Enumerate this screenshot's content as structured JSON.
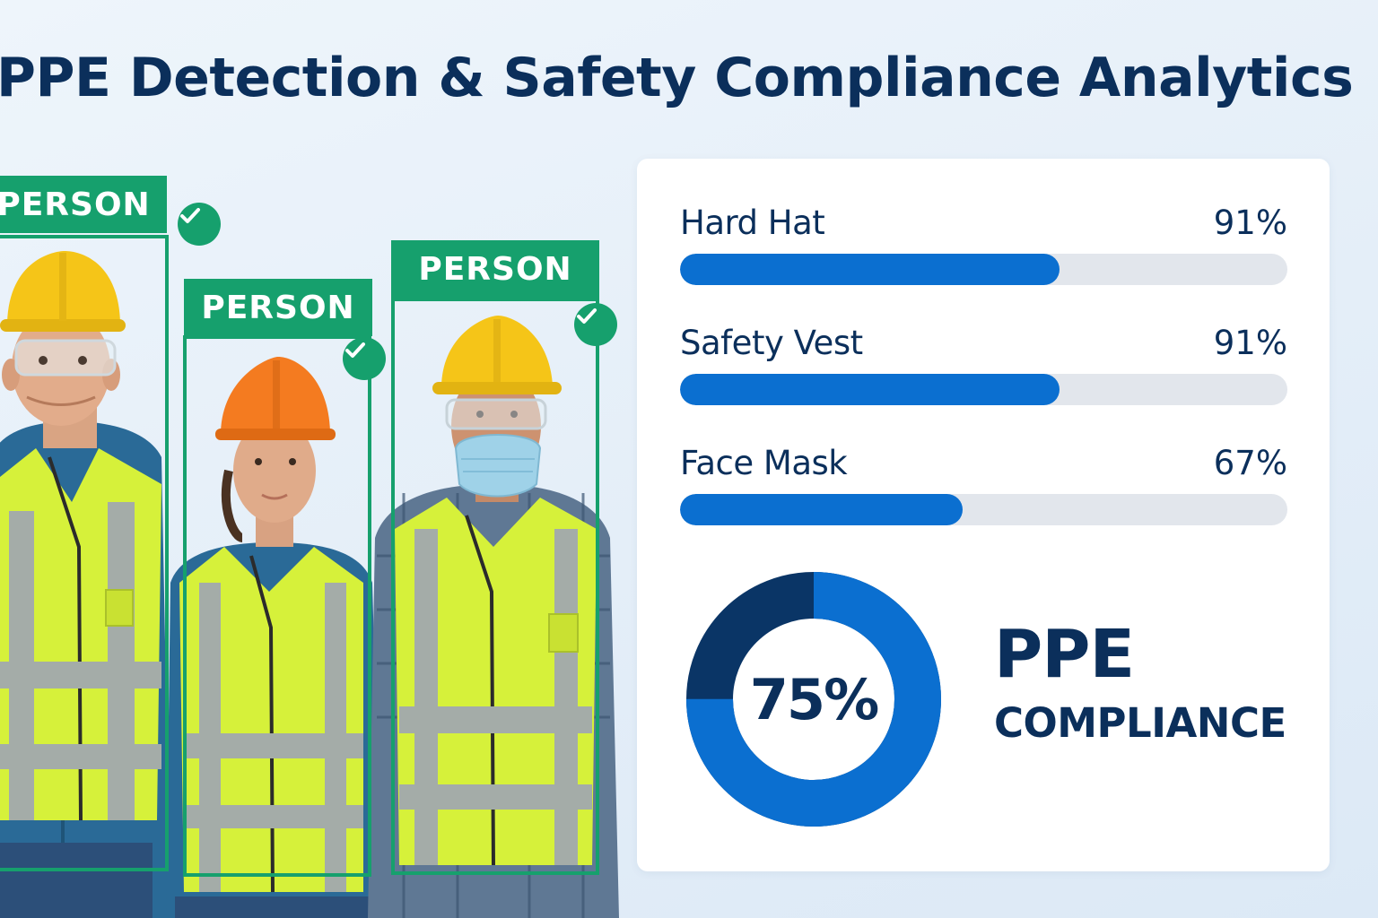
{
  "page": {
    "title": "PPE Detection & Safety Compliance Analytics"
  },
  "detections": [
    {
      "label": "PERSON",
      "verified": true
    },
    {
      "label": "PERSON",
      "verified": true
    },
    {
      "label": "PERSON",
      "verified": true
    }
  ],
  "metrics": [
    {
      "label": "Hard Hat",
      "value_text": "91%",
      "fill_fraction": 0.625
    },
    {
      "label": "Safety Vest",
      "value_text": "91%",
      "fill_fraction": 0.625
    },
    {
      "label": "Face Mask",
      "value_text": "67%",
      "fill_fraction": 0.465
    }
  ],
  "compliance": {
    "value_text": "75%",
    "fraction": 0.75,
    "title": "PPE",
    "subtitle": "COMPLIANCE"
  },
  "colors": {
    "title_navy": "#0b2f5b",
    "bar_blue": "#0b6fd0",
    "bar_track": "#e2e6ec",
    "donut_primary": "#0b6fd0",
    "donut_secondary": "#0a3566",
    "detection_green": "#16a06d",
    "hard_hat_yellow": "#f5c518",
    "hard_hat_orange": "#f47b20",
    "vest_hi_vis": "#d8f23c",
    "reflective_stripe": "#9aa3a0"
  },
  "icons": {
    "verified": "check-icon"
  }
}
